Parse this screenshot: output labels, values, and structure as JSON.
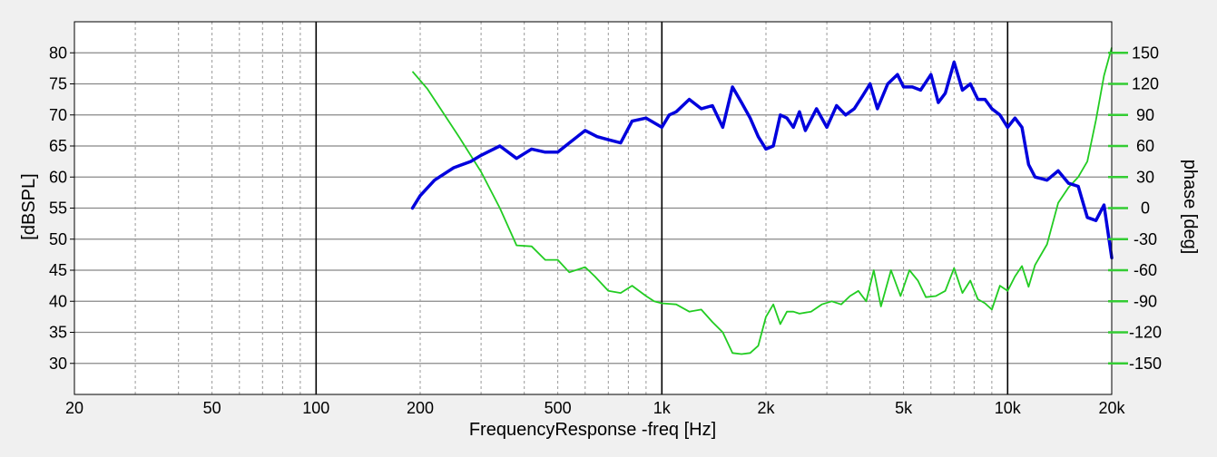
{
  "chart_data": {
    "type": "line",
    "title": "",
    "xlabel": "FrequencyResponse -freq [Hz]",
    "ylabel": "[dBSPL]",
    "y2label": "phase [deg]",
    "x_scale": "log",
    "xlim": [
      20,
      20000
    ],
    "ylim": [
      25,
      85
    ],
    "y2lim": [
      -180,
      180
    ],
    "x_ticks": [
      20,
      50,
      100,
      200,
      500,
      1000,
      2000,
      5000,
      10000,
      20000
    ],
    "x_tick_labels": [
      "20",
      "50",
      "100",
      "200",
      "500",
      "1k",
      "2k",
      "5k",
      "10k",
      "20k"
    ],
    "y_ticks": [
      30,
      35,
      40,
      45,
      50,
      55,
      60,
      65,
      70,
      75,
      80
    ],
    "y_tick_labels": [
      "30",
      "35",
      "40",
      "45",
      "50",
      "55",
      "60",
      "65",
      "70",
      "75",
      "80"
    ],
    "y2_ticks": [
      -150,
      -120,
      -90,
      -60,
      -30,
      0,
      30,
      60,
      90,
      120,
      150
    ],
    "y2_tick_labels": [
      "-150",
      "-120",
      "-90",
      "-60",
      "-30",
      "0",
      "30",
      "60",
      "90",
      "120",
      "150"
    ],
    "grid": true,
    "legend": "none",
    "colors": {
      "magnitude": "#0000dd",
      "phase": "#22cc22",
      "phase_axis": "#33cc33",
      "grid_major": "#000000",
      "grid_minor": "#999999",
      "grid_horizontal": "#888888",
      "plot_background": "#ffffff",
      "page_background": "#f0f0f0"
    },
    "series": [
      {
        "axis": "left",
        "x": [
          190,
          200,
          220,
          250,
          280,
          300,
          340,
          380,
          420,
          460,
          500,
          540,
          600,
          650,
          700,
          760,
          820,
          900,
          1000,
          1050,
          1100,
          1200,
          1300,
          1400,
          1500,
          1600,
          1700,
          1800,
          1900,
          2000,
          2100,
          2200,
          2300,
          2400,
          2500,
          2600,
          2800,
          3000,
          3200,
          3400,
          3600,
          3800,
          4000,
          4200,
          4500,
          4800,
          5000,
          5300,
          5600,
          6000,
          6300,
          6600,
          7000,
          7400,
          7800,
          8200,
          8600,
          9000,
          9500,
          10000,
          10500,
          11000,
          11500,
          12000,
          13000,
          14000,
          15000,
          16000,
          17000,
          18000,
          19000,
          20000
        ],
        "values": [
          55,
          57,
          59.5,
          61.5,
          62.5,
          63.5,
          65,
          63,
          64.5,
          64,
          64,
          65.5,
          67.5,
          66.5,
          66,
          65.5,
          69,
          69.5,
          68,
          70,
          70.5,
          72.5,
          71,
          71.5,
          68,
          74.5,
          72,
          69.5,
          66.5,
          64.5,
          65,
          70,
          69.5,
          68,
          70.5,
          67.5,
          71,
          68,
          71.5,
          70,
          71,
          73,
          75,
          71,
          75,
          76.5,
          74.5,
          74.5,
          74,
          76.5,
          72,
          73.5,
          78.5,
          74,
          75,
          72.5,
          72.5,
          71,
          70,
          68,
          69.5,
          68,
          62,
          60,
          59.5,
          61,
          59,
          58.5,
          53.5,
          53,
          55.5,
          47
        ]
      },
      {
        "axis": "right",
        "x": [
          190,
          210,
          230,
          260,
          300,
          340,
          380,
          420,
          460,
          500,
          540,
          600,
          640,
          700,
          760,
          820,
          900,
          950,
          1000,
          1100,
          1200,
          1300,
          1400,
          1500,
          1600,
          1700,
          1800,
          1900,
          2000,
          2100,
          2200,
          2300,
          2400,
          2500,
          2700,
          2900,
          3100,
          3300,
          3500,
          3700,
          3900,
          4100,
          4300,
          4600,
          4900,
          5200,
          5500,
          5800,
          6200,
          6600,
          7000,
          7400,
          7800,
          8200,
          8600,
          9000,
          9500,
          10000,
          10500,
          11000,
          11500,
          12000,
          13000,
          14000,
          15000,
          16000,
          17000,
          18000,
          19000,
          20000
        ],
        "values": [
          132,
          115,
          95,
          68,
          35,
          0,
          -36,
          -37,
          -50,
          -50,
          -62,
          -57,
          -66,
          -80,
          -82,
          -75,
          -85,
          -90,
          -92,
          -93,
          -100,
          -98,
          -110,
          -120,
          -140,
          -141,
          -140,
          -133,
          -105,
          -93,
          -112,
          -100,
          -100,
          -102,
          -100,
          -93,
          -90,
          -93,
          -85,
          -80,
          -90,
          -60,
          -95,
          -60,
          -85,
          -60,
          -70,
          -86,
          -85,
          -80,
          -58,
          -82,
          -70,
          -88,
          -92,
          -98,
          -75,
          -80,
          -66,
          -56,
          -76,
          -55,
          -35,
          5,
          20,
          30,
          45,
          85,
          128,
          155
        ]
      }
    ]
  }
}
